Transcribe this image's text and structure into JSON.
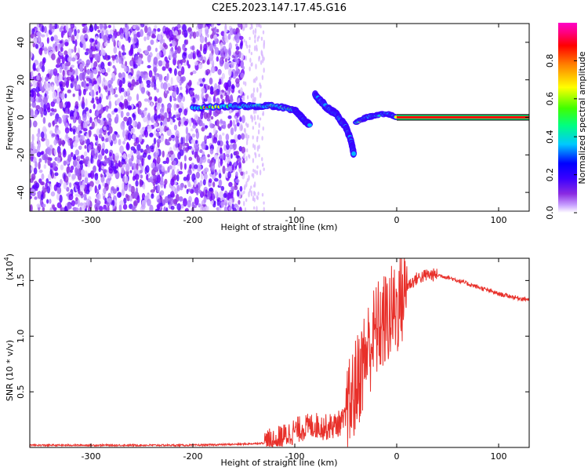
{
  "title": "C2E5.2023.147.17.45.G16",
  "chart_data": [
    {
      "type": "heatmap",
      "xlabel": "Height of straight line (km)",
      "ylabel": "Frequency (Hz)",
      "xlim": [
        -360,
        130
      ],
      "ylim": [
        -50,
        50
      ],
      "x_ticks": [
        -300,
        -200,
        -100,
        0,
        100
      ],
      "y_ticks": [
        -40,
        -20,
        0,
        20,
        40
      ],
      "colorbar": {
        "label": "Normalized spectral amplitude",
        "range": [
          0,
          1
        ],
        "ticks": [
          "0.0",
          "0.2",
          "0.4",
          "0.6",
          "0.8"
        ],
        "colormap": [
          "#ffffff",
          "#c8a0ff",
          "#8a2be2",
          "#3a00ff",
          "#0000ff",
          "#00c8ff",
          "#00ff80",
          "#40ff00",
          "#ffff00",
          "#ff8000",
          "#ff0000",
          "#ff0080",
          "#ff00c8"
        ]
      },
      "features": {
        "noise_region_x": [
          -360,
          -150
        ],
        "noise_tail_x": [
          -150,
          -130
        ],
        "signal_band": [
          {
            "x": -200,
            "y": 5
          },
          {
            "x": -160,
            "y": 6
          },
          {
            "x": -140,
            "y": 6
          },
          {
            "x": -120,
            "y": 6
          },
          {
            "x": -100,
            "y": 4
          },
          {
            "x": -95,
            "y": 1
          },
          {
            "x": -90,
            "y": -2
          },
          {
            "x": -85,
            "y": -4
          }
        ],
        "branch": [
          {
            "x": -80,
            "y": 12
          },
          {
            "x": -70,
            "y": 6
          },
          {
            "x": -60,
            "y": 2
          },
          {
            "x": -50,
            "y": -5
          },
          {
            "x": -45,
            "y": -12
          },
          {
            "x": -42,
            "y": -20
          }
        ],
        "tail": [
          {
            "x": -40,
            "y": -3
          },
          {
            "x": -30,
            "y": 0
          },
          {
            "x": -20,
            "y": 1
          },
          {
            "x": -10,
            "y": 2
          },
          {
            "x": 0,
            "y": 0
          }
        ],
        "carrier_line": {
          "x_start": 0,
          "x_end": 130,
          "y": 0
        }
      }
    },
    {
      "type": "line",
      "xlabel": "Height of straight line (km)",
      "ylabel": "SNR (10 * v/v)",
      "multiplier_label": "(x10",
      "multiplier_exp": "4",
      "multiplier_close": ")",
      "xlim": [
        -360,
        130
      ],
      "ylim": [
        0,
        1.7
      ],
      "x_ticks": [
        -300,
        -200,
        -100,
        0,
        100
      ],
      "y_ticks": [
        0.5,
        1.0,
        1.5
      ],
      "y_tick_labels": [
        "0.5",
        "1.0",
        "1.5"
      ],
      "color": "#e8302a",
      "series": [
        {
          "x": [
            -360,
            -300,
            -250,
            -200,
            -150,
            -130,
            -120,
            -110,
            -100,
            -90,
            -80,
            -70,
            -60,
            -50,
            -45,
            -40,
            -35,
            -30,
            -25,
            -20,
            -15,
            -10,
            -5,
            0,
            5,
            10,
            20,
            30,
            40,
            50,
            60,
            70,
            80,
            90,
            100,
            110,
            120,
            130
          ],
          "values": [
            0.02,
            0.02,
            0.02,
            0.02,
            0.03,
            0.04,
            0.06,
            0.1,
            0.15,
            0.18,
            0.2,
            0.18,
            0.2,
            0.25,
            0.4,
            0.55,
            0.7,
            0.85,
            0.95,
            1.05,
            1.1,
            1.15,
            1.2,
            1.25,
            1.35,
            1.45,
            1.52,
            1.55,
            1.55,
            1.53,
            1.5,
            1.47,
            1.44,
            1.41,
            1.38,
            1.36,
            1.34,
            1.33
          ]
        }
      ]
    }
  ]
}
